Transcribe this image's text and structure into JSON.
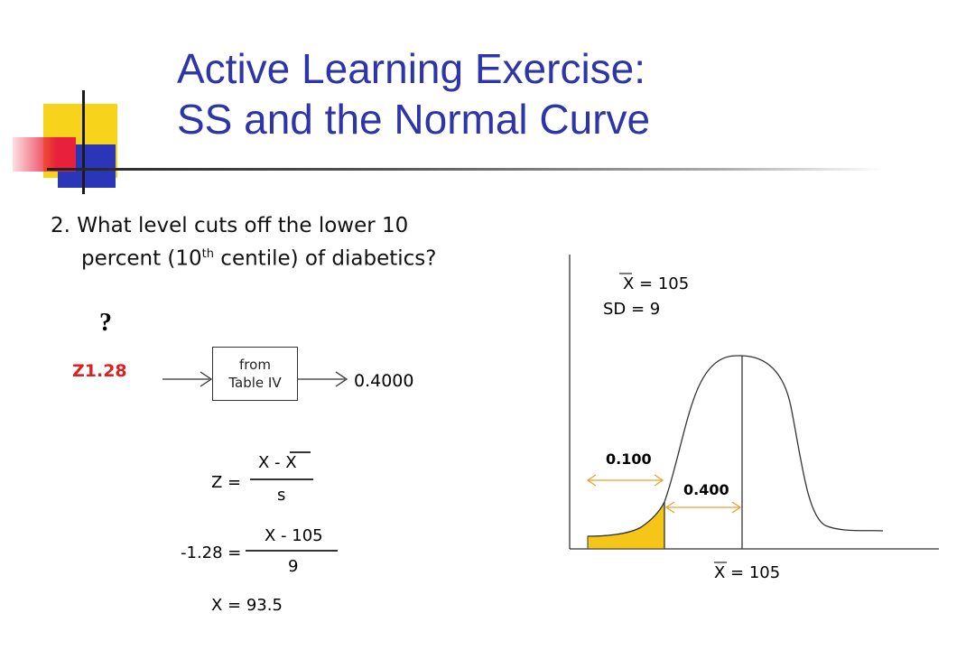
{
  "title": {
    "line1": "Active Learning Exercise:",
    "line2": "SS and the Normal Curve"
  },
  "question": {
    "line1": "2. What level cuts off the lower 10",
    "line2_pre": "percent (10",
    "line2_sup": "th",
    "line2_post": " centile) of diabetics?"
  },
  "workflow": {
    "question_mark": "?",
    "z_value": "Z1.28",
    "table_box_line1": "from",
    "table_box_line2": "Table IV",
    "probability": "0.4000"
  },
  "formula": {
    "z_label": "Z =",
    "numerator": "X - X",
    "denominator": "s",
    "step2_lhs": "-1.28 =",
    "step2_numerator": "X - 105",
    "step2_denominator": "9",
    "result": "X = 93.5"
  },
  "curve": {
    "mean_label_top": "X = 105",
    "sd_label": "SD = 9",
    "mean_label_bottom": "X = 105",
    "area_lower_tail": "0.100",
    "area_to_mean": "0.400",
    "fill_color": "#f5c518"
  },
  "colors": {
    "title": "#2e35a8",
    "z_value": "#e02020",
    "arrow": "#e8a030"
  }
}
